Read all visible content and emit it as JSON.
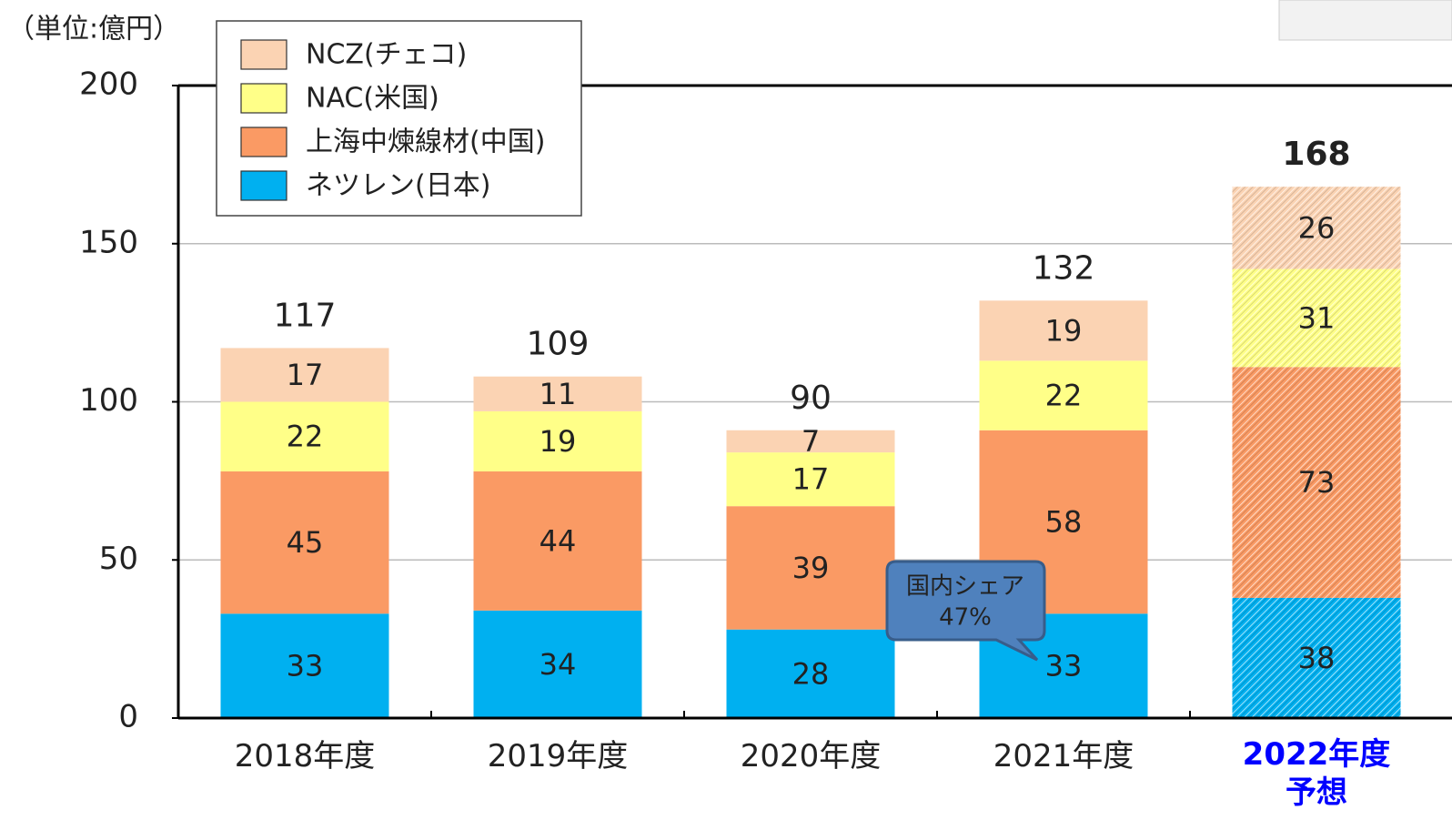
{
  "chart_data": {
    "type": "stacked-bar",
    "unit_label": "（単位:億円）",
    "categories": [
      "2018年度",
      "2019年度",
      "2020年度",
      "2021年度",
      "2022年度\n予想"
    ],
    "forecast": [
      false,
      false,
      false,
      false,
      true
    ],
    "forecast_color": "#0000ff",
    "series": [
      {
        "name": "ネツレン(日本)",
        "color": "#00b0f0",
        "values": [
          33,
          34,
          28,
          33,
          38
        ]
      },
      {
        "name": "上海中煉線材(中国)",
        "color": "#fa9a64",
        "values": [
          45,
          44,
          39,
          58,
          73
        ]
      },
      {
        "name": "NAC(米国)",
        "color": "#ffff88",
        "values": [
          22,
          19,
          17,
          22,
          31
        ]
      },
      {
        "name": "NCZ(チェコ)",
        "color": "#fbd3b3",
        "values": [
          17,
          11,
          7,
          19,
          26
        ]
      }
    ],
    "totals": [
      117,
      109,
      90,
      132,
      168
    ],
    "annotation": [
      "国内シェア",
      "47%"
    ],
    "ylim": [
      0,
      200
    ],
    "yticks": [
      0,
      50,
      100,
      150,
      200
    ],
    "grid": true
  }
}
